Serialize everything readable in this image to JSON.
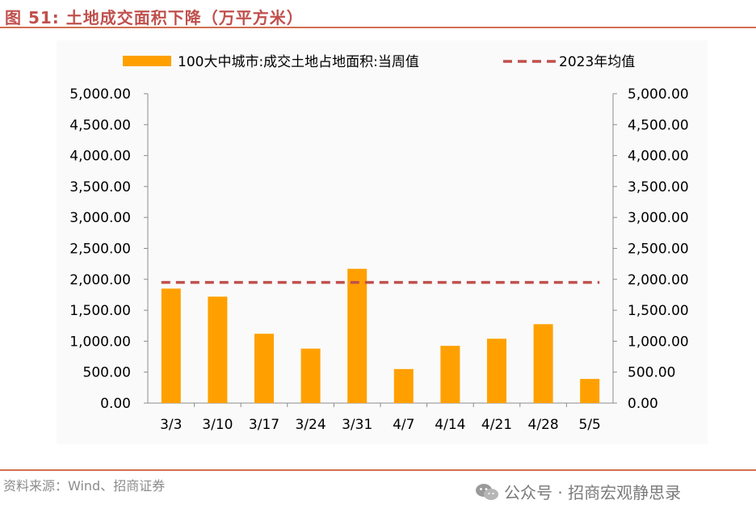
{
  "header": {
    "figure_title": "图 51:  土地成交面积下降（万平方米）"
  },
  "footer": {
    "source": "资料来源：Wind、招商证券",
    "watermark": "公众号 · 招商宏观静思录",
    "watermark_icon": "wechat-icon"
  },
  "colors": {
    "bar": "#ffa000",
    "avg_line": "#c0504d",
    "accent": "#c0504d"
  },
  "chart_data": {
    "type": "bar",
    "categories": [
      "3/3",
      "3/10",
      "3/17",
      "3/24",
      "3/31",
      "4/7",
      "4/14",
      "4/21",
      "4/28",
      "5/5"
    ],
    "series": [
      {
        "name": "100大中城市:成交土地占地面积:当周值",
        "type": "bar",
        "values": [
          1850,
          1720,
          1120,
          880,
          2170,
          550,
          925,
          1040,
          1275,
          390
        ]
      },
      {
        "name": "2023年均值",
        "type": "line",
        "style": "dashed",
        "value": 1950
      }
    ],
    "ylim": [
      0,
      5000
    ],
    "yticks": [
      "0.00",
      "500.00",
      "1,000.00",
      "1,500.00",
      "2,000.00",
      "2,500.00",
      "3,000.00",
      "3,500.00",
      "4,000.00",
      "4,500.00",
      "5,000.00"
    ],
    "ytick_values": [
      0,
      500,
      1000,
      1500,
      2000,
      2500,
      3000,
      3500,
      4000,
      4500,
      5000
    ],
    "legend_position": "top",
    "grid": false,
    "dual_axis": true
  }
}
